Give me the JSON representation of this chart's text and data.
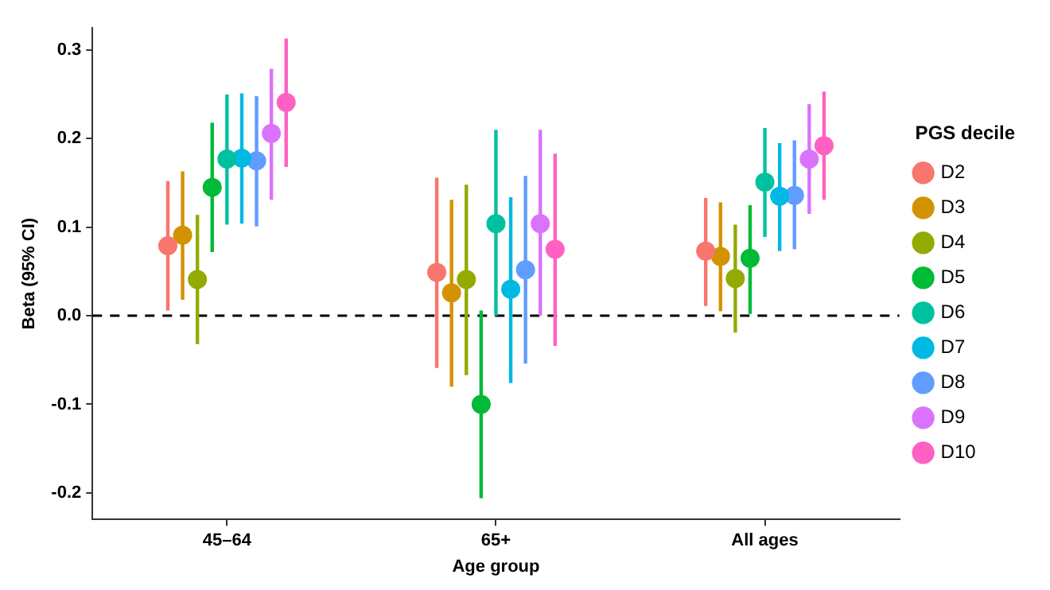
{
  "chart_data": {
    "type": "scatter",
    "xlabel": "Age group",
    "ylabel": "Beta (95% CI)",
    "legend_title": "PGS decile",
    "categories": [
      "45–64",
      "65+",
      "All ages"
    ],
    "ylim": [
      -0.23,
      0.325
    ],
    "yticks": [
      {
        "value": -0.2,
        "label": "-0.2"
      },
      {
        "value": -0.1,
        "label": "-0.1"
      },
      {
        "value": 0,
        "label": "0.0"
      },
      {
        "value": 0.1,
        "label": "0.1"
      },
      {
        "value": 0.2,
        "label": "0.2"
      },
      {
        "value": 0.3,
        "label": "0.3"
      }
    ],
    "grid": false,
    "legend": "right",
    "marker": "circle",
    "ref_lines": [
      {
        "axis": "y",
        "value": 0,
        "line_style": "dashed",
        "color": "#000000"
      }
    ],
    "series": [
      {
        "name": "D2",
        "color": "#f8766d",
        "values": [
          0.079,
          0.049,
          0.073
        ],
        "errors": [
          [
            0.006,
            0.152
          ],
          [
            -0.059,
            0.156
          ],
          [
            0.011,
            0.133
          ]
        ]
      },
      {
        "name": "D3",
        "color": "#d39200",
        "values": [
          0.091,
          0.026,
          0.067
        ],
        "errors": [
          [
            0.018,
            0.163
          ],
          [
            -0.08,
            0.131
          ],
          [
            0.005,
            0.128
          ]
        ]
      },
      {
        "name": "D4",
        "color": "#93aa00",
        "values": [
          0.041,
          0.041,
          0.042
        ],
        "errors": [
          [
            -0.032,
            0.114
          ],
          [
            -0.067,
            0.148
          ],
          [
            -0.019,
            0.103
          ]
        ]
      },
      {
        "name": "D5",
        "color": "#00ba38",
        "values": [
          0.145,
          -0.1,
          0.065
        ],
        "errors": [
          [
            0.072,
            0.218
          ],
          [
            -0.206,
            0.006
          ],
          [
            0.002,
            0.125
          ]
        ]
      },
      {
        "name": "D6",
        "color": "#00c19f",
        "values": [
          0.177,
          0.104,
          0.151
        ],
        "errors": [
          [
            0.103,
            0.25
          ],
          [
            0.0,
            0.21
          ],
          [
            0.089,
            0.212
          ]
        ]
      },
      {
        "name": "D7",
        "color": "#00b9e3",
        "values": [
          0.178,
          0.03,
          0.135
        ],
        "errors": [
          [
            0.104,
            0.251
          ],
          [
            -0.076,
            0.134
          ],
          [
            0.073,
            0.195
          ]
        ]
      },
      {
        "name": "D8",
        "color": "#619cff",
        "values": [
          0.175,
          0.052,
          0.136
        ],
        "errors": [
          [
            0.101,
            0.248
          ],
          [
            -0.054,
            0.158
          ],
          [
            0.075,
            0.198
          ]
        ]
      },
      {
        "name": "D9",
        "color": "#db72fb",
        "values": [
          0.206,
          0.104,
          0.177
        ],
        "errors": [
          [
            0.131,
            0.279
          ],
          [
            0.0,
            0.21
          ],
          [
            0.115,
            0.239
          ]
        ]
      },
      {
        "name": "D10",
        "color": "#ff61c3",
        "values": [
          0.241,
          0.075,
          0.192
        ],
        "errors": [
          [
            0.168,
            0.313
          ],
          [
            -0.034,
            0.183
          ],
          [
            0.131,
            0.253
          ]
        ]
      }
    ]
  }
}
